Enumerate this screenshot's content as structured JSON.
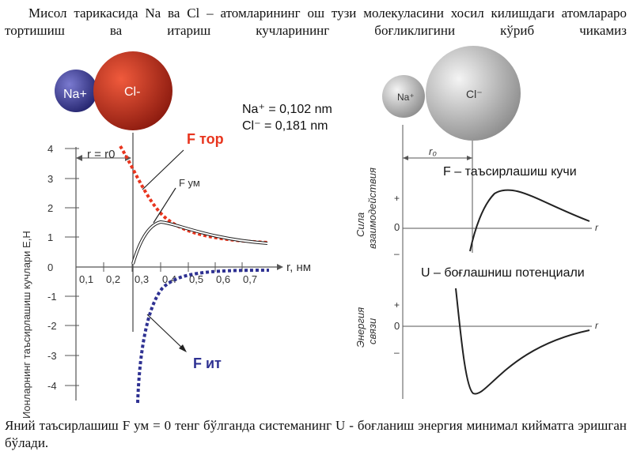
{
  "paragraph_top": "Мисол тарикасида Na ва Cl – атомларининг ош тузи молекуласини хосил килишдаги атомлараро тортишиш ва итариш кучларининг боғликлигини кўриб чикамиз",
  "paragraph_bottom": "Яний таъсирлашиш F ум = 0 тенг бўлганда системанинг U - боғланиш энергия минимал кийматга эришган бўлади.",
  "left_diagram": {
    "na_label": "Na+",
    "cl_label": "Cl-",
    "radius_na": "Na⁺ = 0,102 nm",
    "radius_cl": "Cl⁻ = 0,181 nm",
    "y_axis_label": "Ионларнинг таъсирлашиш кучлари Е,Н",
    "x_axis_label": "r, нм",
    "r0_label": "r = r0",
    "y_ticks": [
      "4",
      "3",
      "2",
      "1",
      "0",
      "-1",
      "-2",
      "-3",
      "-4"
    ],
    "x_ticks": [
      "0,1",
      "0,2",
      "0,3",
      "0,4",
      "0,5",
      "0,6",
      "0,7"
    ],
    "f_tor_label": "F тор",
    "f_um_label": "F ум",
    "f_it_label": "F ит",
    "colors": {
      "attraction": "#e8351e",
      "repulsion": "#2e3192",
      "na_ball": "#3a3a8c",
      "cl_ball": "#c0311e"
    }
  },
  "right_diagram": {
    "na_label": "Na⁺",
    "cl_label": "Cl⁻",
    "r0_label": "r₀",
    "force_label": "F – таъсирлашиш кучи",
    "potential_label": "U – боғлашниш потенциали",
    "force_axis_title_1": "Сила",
    "force_axis_title_2": "взаимодействия",
    "energy_axis_title_1": "Энергия",
    "energy_axis_title_2": "связи",
    "zero_label": "0",
    "r_label": "r",
    "plus_sign": "+",
    "minus_sign": "–"
  }
}
